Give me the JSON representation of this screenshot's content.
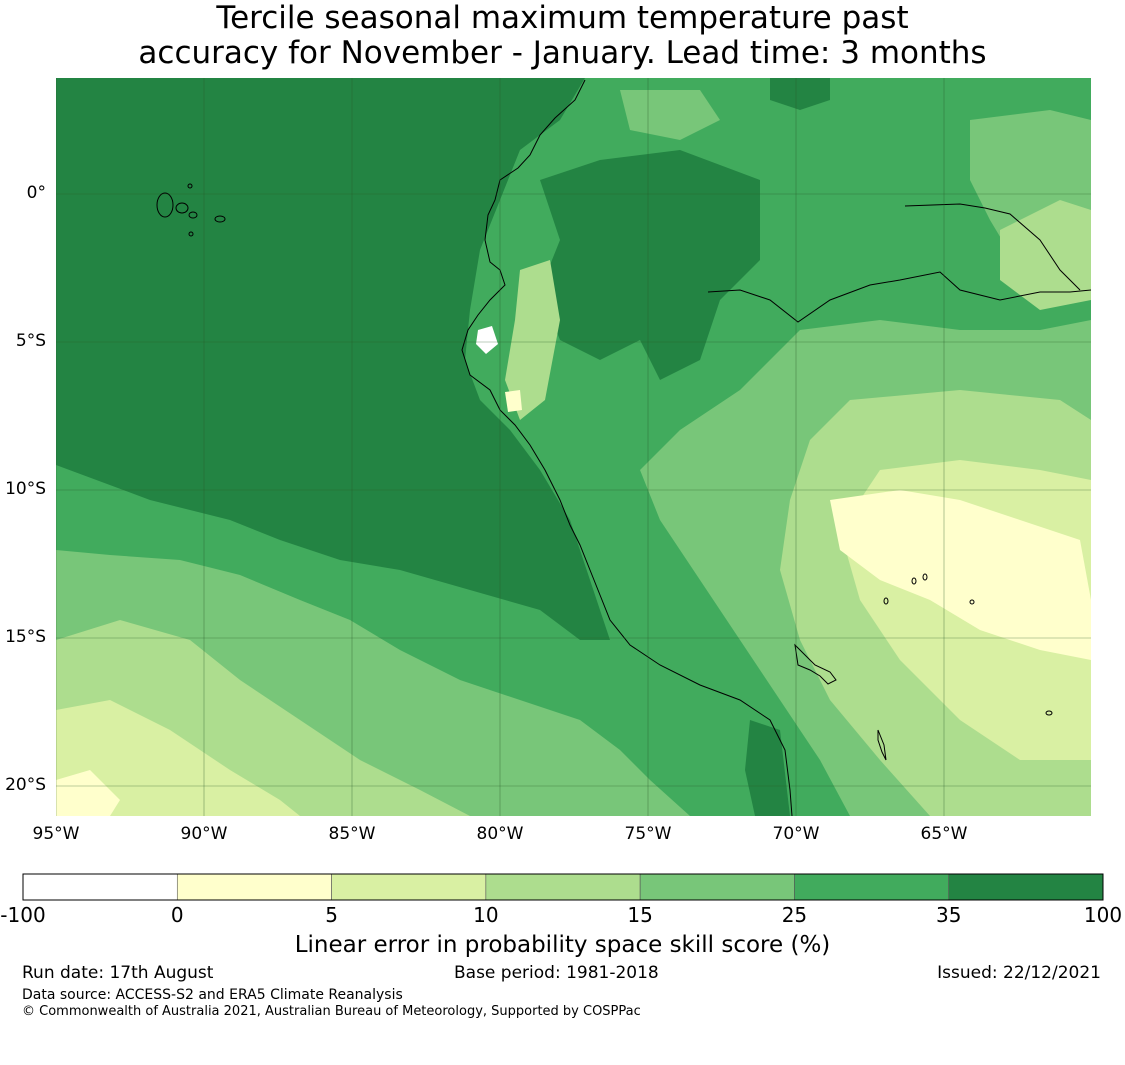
{
  "title": {
    "line1": "Tercile seasonal maximum temperature past",
    "line2": "accuracy for November - January. Lead time: 3 months"
  },
  "map": {
    "lon_labels": [
      "95°W",
      "90°W",
      "85°W",
      "80°W",
      "75°W",
      "70°W",
      "65°W"
    ],
    "lat_labels": [
      "0°",
      "5°S",
      "10°S",
      "15°S",
      "20°S"
    ],
    "grid": true
  },
  "colorbar": {
    "ticks": [
      "-100",
      "0",
      "5",
      "10",
      "15",
      "25",
      "35",
      "100"
    ],
    "colors": [
      "#ffffff",
      "#ffffcc",
      "#d9f0a3",
      "#addd8e",
      "#78c679",
      "#41ab5d",
      "#238443"
    ],
    "label": "Linear error in probability space skill score (%)"
  },
  "footer": {
    "run_date": "Run date: 17th August",
    "base_period": "Base period: 1981-2018",
    "issued": "Issued: 22/12/2021",
    "data_source": "Data source: ACCESS-S2 and ERA5 Climate Reanalysis",
    "copyright": "© Commonwealth of Australia 2021, Australian Bureau of Meteorology, Supported by COSPPac"
  }
}
